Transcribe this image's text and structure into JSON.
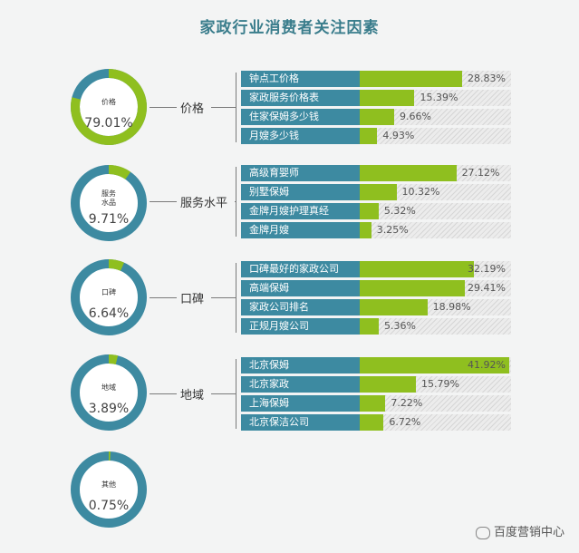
{
  "title": "家政行业消费者关注因素",
  "watermark": "百度营销中心",
  "colors": {
    "ring_base": "#3d8aa1",
    "ring_accent": "#8fbf1f",
    "label_bg": "#3d8aa1",
    "fill": "#8fbf1f"
  },
  "chart_data": {
    "type": "bar",
    "groups": [
      {
        "name": "价格",
        "donut_label": "价格",
        "share": 79.01,
        "share_text": "79.01%",
        "items": [
          {
            "label": "钟点工价格",
            "value": 28.83,
            "text": "28.83%"
          },
          {
            "label": "家政服务价格表",
            "value": 15.39,
            "text": "15.39%"
          },
          {
            "label": "住家保姆多少钱",
            "value": 9.66,
            "text": "9.66%"
          },
          {
            "label": "月嫂多少钱",
            "value": 4.93,
            "text": "4.93%"
          }
        ]
      },
      {
        "name": "服务水平",
        "donut_label": "服务\n水品",
        "share": 9.71,
        "share_text": "9.71%",
        "items": [
          {
            "label": "高级育婴师",
            "value": 27.12,
            "text": "27.12%"
          },
          {
            "label": "别墅保姆",
            "value": 10.32,
            "text": "10.32%"
          },
          {
            "label": "金牌月嫂护理真经",
            "value": 5.32,
            "text": "5.32%"
          },
          {
            "label": "金牌月嫂",
            "value": 3.25,
            "text": "3.25%"
          }
        ]
      },
      {
        "name": "口碑",
        "donut_label": "口碑",
        "share": 6.64,
        "share_text": "6.64%",
        "items": [
          {
            "label": "口碑最好的家政公司",
            "value": 32.19,
            "text": "32.19%"
          },
          {
            "label": "高端保姆",
            "value": 29.41,
            "text": "29.41%"
          },
          {
            "label": "家政公司排名",
            "value": 18.98,
            "text": "18.98%"
          },
          {
            "label": "正规月嫂公司",
            "value": 5.36,
            "text": "5.36%"
          }
        ]
      },
      {
        "name": "地域",
        "donut_label": "地域",
        "share": 3.89,
        "share_text": "3.89%",
        "items": [
          {
            "label": "北京保姆",
            "value": 41.92,
            "text": "41.92%"
          },
          {
            "label": "北京家政",
            "value": 15.79,
            "text": "15.79%"
          },
          {
            "label": "上海保姆",
            "value": 7.22,
            "text": "7.22%"
          },
          {
            "label": "北京保洁公司",
            "value": 6.72,
            "text": "6.72%"
          }
        ]
      },
      {
        "name": "",
        "donut_label": "其他",
        "share": 0.75,
        "share_text": "0.75%",
        "items": []
      }
    ],
    "xlim": [
      0,
      100
    ],
    "ylabel": "",
    "xlabel": ""
  }
}
